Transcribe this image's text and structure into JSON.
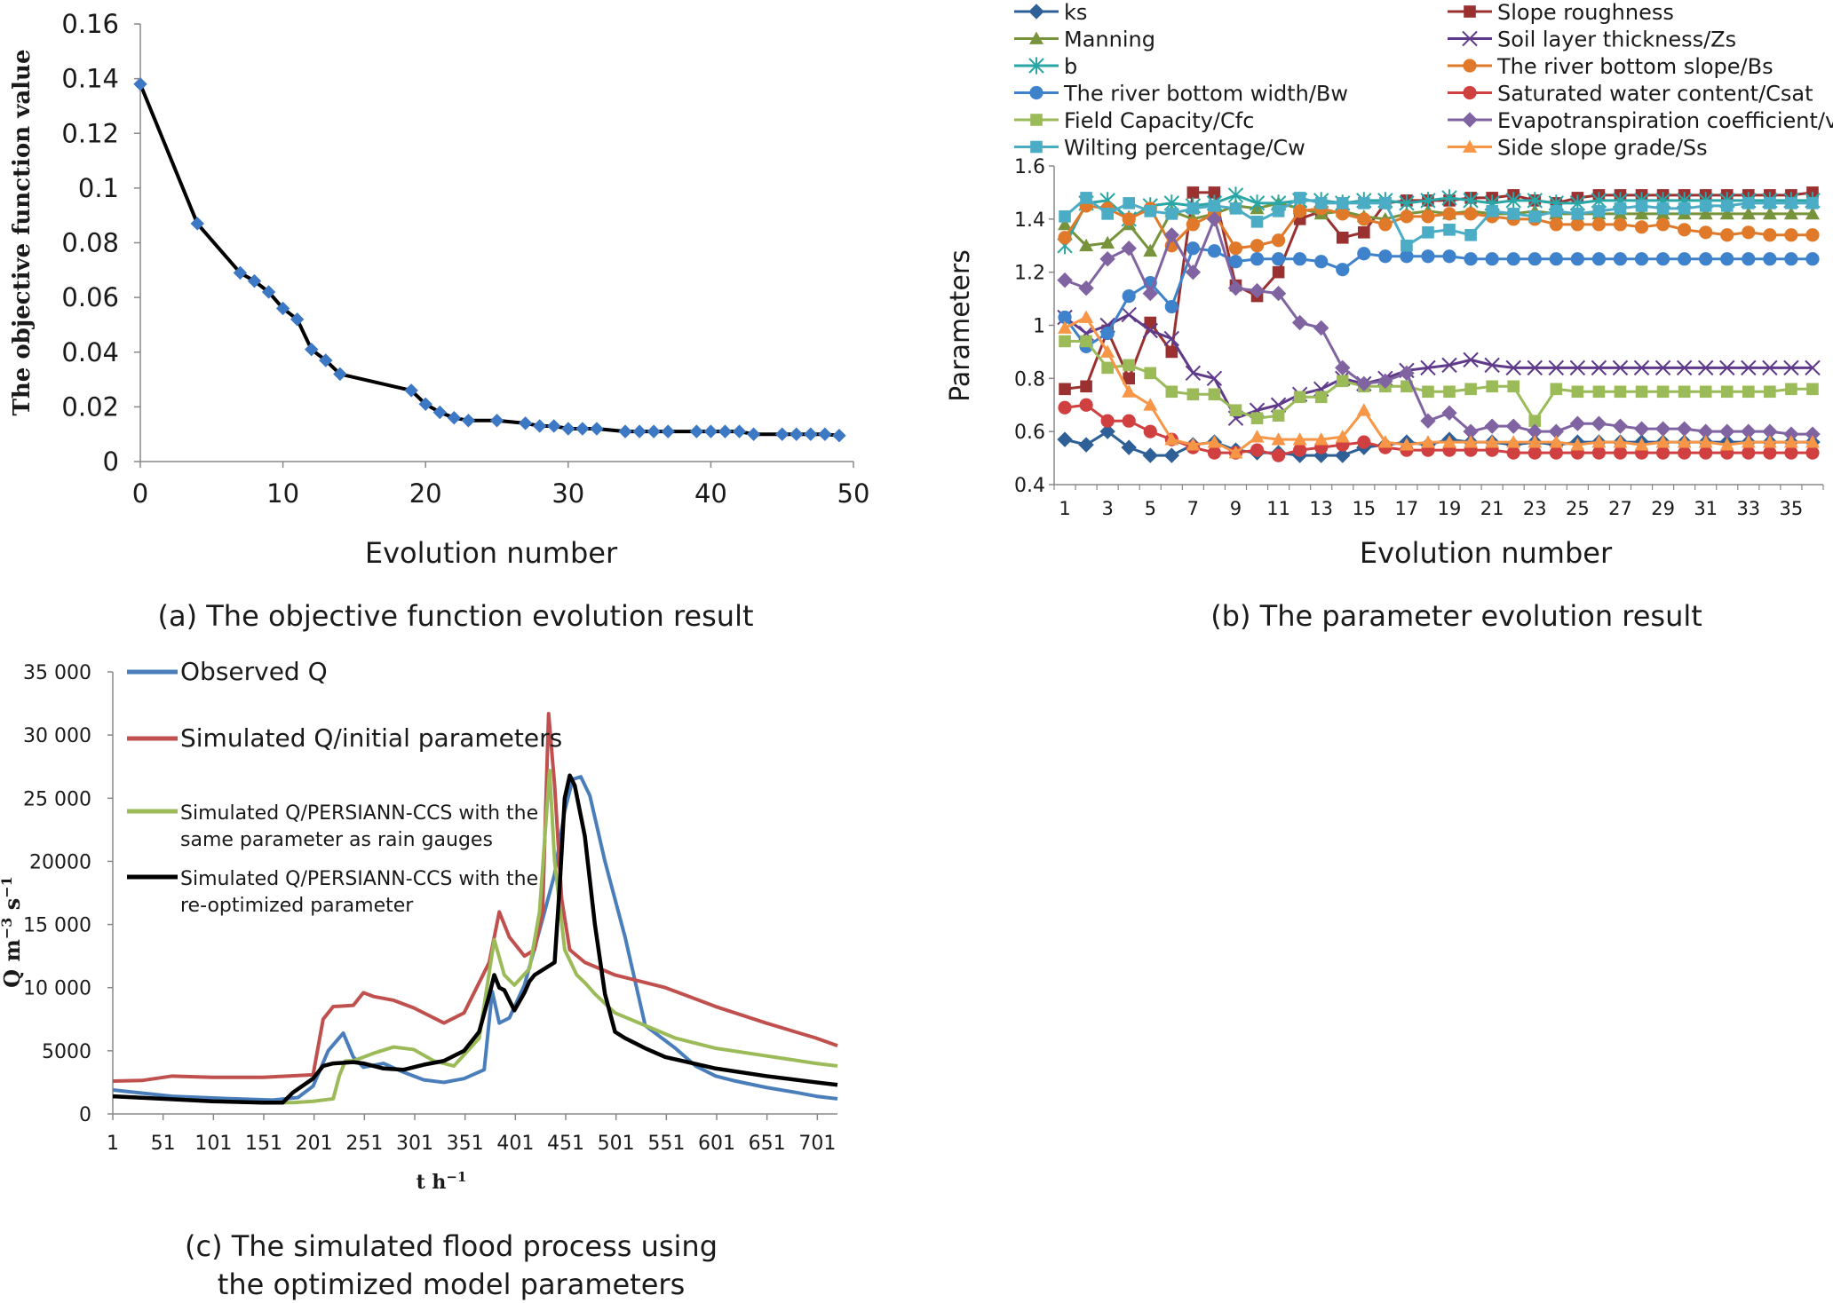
{
  "panels": [
    {
      "type": "line",
      "caption": "(a) The objective function evolution result",
      "xlabel": "Evolution number",
      "ylabel": "The objective function value",
      "xlim": [
        0,
        50
      ],
      "ylim": [
        0,
        0.16
      ],
      "xticks": [
        "0",
        "10",
        "20",
        "30",
        "40",
        "50"
      ],
      "yticks": [
        "0",
        "0.02",
        "0.04",
        "0.06",
        "0.08",
        "0.1",
        "0.12",
        "0.14",
        "0.16"
      ],
      "grid": false,
      "series": [
        {
          "color": "#000000",
          "marker_color": "#3d78c4",
          "x": [
            0,
            4,
            7,
            8,
            9,
            10,
            11,
            12,
            13,
            14,
            19,
            20,
            21,
            22,
            23,
            25,
            27,
            28,
            29,
            30,
            31,
            32,
            34,
            35,
            36,
            37,
            39,
            40,
            41,
            42,
            43,
            45,
            46,
            47,
            48,
            49
          ],
          "y": [
            0.138,
            0.087,
            0.069,
            0.066,
            0.062,
            0.056,
            0.052,
            0.041,
            0.037,
            0.032,
            0.026,
            0.021,
            0.018,
            0.016,
            0.015,
            0.015,
            0.014,
            0.013,
            0.013,
            0.012,
            0.012,
            0.012,
            0.011,
            0.011,
            0.011,
            0.011,
            0.011,
            0.011,
            0.011,
            0.011,
            0.01,
            0.01,
            0.01,
            0.01,
            0.01,
            0.0095
          ]
        }
      ]
    },
    {
      "type": "line",
      "caption": "(b) The parameter evolution result",
      "xlabel": "Evolution number",
      "ylabel": "Parameters",
      "xlim": [
        1,
        36
      ],
      "ylim": [
        0.4,
        1.6
      ],
      "xticks": [
        "1",
        "3",
        "5",
        "7",
        "9",
        "11",
        "13",
        "15",
        "17",
        "19",
        "21",
        "23",
        "25",
        "27",
        "29",
        "31",
        "33",
        "35"
      ],
      "yticks": [
        "0.4",
        "0.6",
        "0.8",
        "1",
        "1.2",
        "1.4",
        "1.6"
      ],
      "grid": false,
      "legend": "top, two columns",
      "series": [
        {
          "name": "ks",
          "color": "#2e5f96",
          "marker": "diamond",
          "values": [
            0.57,
            0.55,
            0.6,
            0.54,
            0.51,
            0.51,
            0.55,
            0.56,
            0.53,
            0.52,
            0.52,
            0.51,
            0.51,
            0.51,
            0.54,
            0.55,
            0.56,
            0.55,
            0.57,
            0.56,
            0.56,
            0.55,
            0.56,
            0.55,
            0.56,
            0.56,
            0.56,
            0.56,
            0.56,
            0.56,
            0.56,
            0.56,
            0.56,
            0.56,
            0.56,
            0.56
          ]
        },
        {
          "name": "Slope roughness",
          "color": "#9b3030",
          "marker": "square",
          "values": [
            0.76,
            0.77,
            0.98,
            0.8,
            1.01,
            0.9,
            1.5,
            1.5,
            1.15,
            1.11,
            1.2,
            1.4,
            1.43,
            1.33,
            1.35,
            1.46,
            1.47,
            1.47,
            1.47,
            1.48,
            1.48,
            1.49,
            1.47,
            1.46,
            1.48,
            1.49,
            1.49,
            1.49,
            1.49,
            1.49,
            1.49,
            1.49,
            1.49,
            1.49,
            1.49,
            1.5
          ]
        },
        {
          "name": "Manning",
          "color": "#77933c",
          "marker": "triangle",
          "values": [
            1.38,
            1.3,
            1.31,
            1.38,
            1.28,
            1.43,
            1.4,
            1.42,
            1.45,
            1.44,
            1.46,
            1.44,
            1.42,
            1.43,
            1.41,
            1.4,
            1.42,
            1.43,
            1.42,
            1.43,
            1.42,
            1.42,
            1.43,
            1.42,
            1.42,
            1.42,
            1.42,
            1.42,
            1.42,
            1.42,
            1.42,
            1.42,
            1.42,
            1.42,
            1.42,
            1.42
          ]
        },
        {
          "name": "Soil layer thickness/Zs",
          "color": "#5f3a8a",
          "marker": "x",
          "values": [
            1.03,
            0.97,
            1.0,
            1.04,
            0.98,
            0.95,
            0.82,
            0.8,
            0.65,
            0.68,
            0.7,
            0.74,
            0.76,
            0.8,
            0.78,
            0.8,
            0.83,
            0.84,
            0.85,
            0.87,
            0.85,
            0.84,
            0.84,
            0.84,
            0.84,
            0.84,
            0.84,
            0.84,
            0.84,
            0.84,
            0.84,
            0.84,
            0.84,
            0.84,
            0.84,
            0.84
          ]
        },
        {
          "name": "b",
          "color": "#2aa6a6",
          "marker": "asterisk",
          "values": [
            1.3,
            1.46,
            1.47,
            1.4,
            1.45,
            1.46,
            1.45,
            1.46,
            1.49,
            1.46,
            1.46,
            1.47,
            1.47,
            1.46,
            1.47,
            1.47,
            1.46,
            1.47,
            1.48,
            1.47,
            1.46,
            1.47,
            1.47,
            1.46,
            1.46,
            1.47,
            1.47,
            1.47,
            1.47,
            1.47,
            1.47,
            1.47,
            1.47,
            1.47,
            1.47,
            1.47
          ]
        },
        {
          "name": "The river bottom slope/Bs",
          "color": "#e07a2a",
          "marker": "circle",
          "values": [
            1.33,
            1.45,
            1.44,
            1.4,
            1.44,
            1.3,
            1.38,
            1.42,
            1.29,
            1.3,
            1.32,
            1.43,
            1.44,
            1.42,
            1.4,
            1.38,
            1.41,
            1.41,
            1.42,
            1.42,
            1.41,
            1.4,
            1.4,
            1.38,
            1.38,
            1.38,
            1.38,
            1.37,
            1.38,
            1.36,
            1.35,
            1.34,
            1.35,
            1.34,
            1.34,
            1.34
          ]
        },
        {
          "name": "The river bottom width/Bw",
          "color": "#3e82cc",
          "marker": "circle",
          "values": [
            1.03,
            0.92,
            0.97,
            1.11,
            1.16,
            1.07,
            1.29,
            1.28,
            1.24,
            1.25,
            1.25,
            1.25,
            1.24,
            1.21,
            1.27,
            1.26,
            1.26,
            1.26,
            1.26,
            1.25,
            1.25,
            1.25,
            1.25,
            1.25,
            1.25,
            1.25,
            1.25,
            1.25,
            1.25,
            1.25,
            1.25,
            1.25,
            1.25,
            1.25,
            1.25,
            1.25
          ]
        },
        {
          "name": "Saturated water content/Csat",
          "color": "#d04040",
          "marker": "circle",
          "values": [
            0.69,
            0.7,
            0.64,
            0.64,
            0.6,
            0.57,
            0.54,
            0.52,
            0.52,
            0.53,
            0.51,
            0.53,
            0.54,
            0.55,
            0.56,
            0.54,
            0.53,
            0.53,
            0.53,
            0.53,
            0.53,
            0.52,
            0.52,
            0.52,
            0.52,
            0.52,
            0.52,
            0.52,
            0.52,
            0.52,
            0.52,
            0.52,
            0.52,
            0.52,
            0.52,
            0.52
          ]
        },
        {
          "name": "Field Capacity/Cfc",
          "color": "#9bbb59",
          "marker": "square",
          "values": [
            0.94,
            0.94,
            0.84,
            0.85,
            0.82,
            0.75,
            0.74,
            0.74,
            0.68,
            0.65,
            0.66,
            0.73,
            0.73,
            0.79,
            0.77,
            0.77,
            0.77,
            0.75,
            0.75,
            0.76,
            0.77,
            0.77,
            0.64,
            0.76,
            0.75,
            0.75,
            0.75,
            0.75,
            0.75,
            0.75,
            0.75,
            0.75,
            0.75,
            0.75,
            0.76,
            0.76
          ]
        },
        {
          "name": "Evapotranspiration coefficient/v",
          "color": "#8064a2",
          "marker": "diamond",
          "values": [
            1.17,
            1.14,
            1.25,
            1.29,
            1.12,
            1.34,
            1.2,
            1.4,
            1.14,
            1.13,
            1.12,
            1.01,
            0.99,
            0.84,
            0.78,
            0.79,
            0.82,
            0.64,
            0.67,
            0.6,
            0.62,
            0.62,
            0.6,
            0.6,
            0.63,
            0.63,
            0.62,
            0.61,
            0.61,
            0.61,
            0.6,
            0.6,
            0.6,
            0.6,
            0.59,
            0.59
          ]
        },
        {
          "name": "Wilting percentage/Cw",
          "color": "#4bacc6",
          "marker": "square",
          "values": [
            1.41,
            1.48,
            1.42,
            1.46,
            1.43,
            1.42,
            1.44,
            1.45,
            1.44,
            1.39,
            1.43,
            1.48,
            1.46,
            1.46,
            1.46,
            1.46,
            1.3,
            1.35,
            1.36,
            1.34,
            1.43,
            1.42,
            1.41,
            1.43,
            1.42,
            1.43,
            1.44,
            1.45,
            1.44,
            1.44,
            1.45,
            1.45,
            1.46,
            1.46,
            1.46,
            1.46
          ]
        },
        {
          "name": "Side slope grade/Ss",
          "color": "#f79646",
          "marker": "triangle",
          "values": [
            0.99,
            1.03,
            0.9,
            0.75,
            0.7,
            0.57,
            0.55,
            0.56,
            0.52,
            0.58,
            0.57,
            0.57,
            0.57,
            0.58,
            0.68,
            0.56,
            0.55,
            0.56,
            0.56,
            0.56,
            0.56,
            0.56,
            0.56,
            0.56,
            0.55,
            0.56,
            0.56,
            0.55,
            0.56,
            0.56,
            0.56,
            0.55,
            0.56,
            0.56,
            0.56,
            0.56
          ]
        }
      ]
    },
    {
      "type": "line",
      "caption_lines": [
        "(c) The simulated flood process using",
        "the optimized model parameters"
      ],
      "xlabel": "t h",
      "xlabel_sup": "−1",
      "ylabel": "Q m",
      "ylabel_sup1": "−3",
      "ylabel_mid": " s",
      "ylabel_sup2": "−1",
      "xlim": [
        1,
        721
      ],
      "ylim": [
        0,
        35000
      ],
      "xticks": [
        "1",
        "51",
        "101",
        "151",
        "201",
        "251",
        "301",
        "351",
        "401",
        "451",
        "501",
        "551",
        "601",
        "651",
        "701"
      ],
      "yticks": [
        "0",
        "5000",
        "10 000",
        "15 000",
        "20000",
        "25 000",
        "30 000",
        "35 000"
      ],
      "grid": false,
      "legend": "top-left",
      "series": [
        {
          "name": "Observed Q",
          "color": "#4a7ebb",
          "width": 4,
          "x": [
            1,
            60,
            120,
            160,
            185,
            200,
            215,
            230,
            240,
            250,
            270,
            290,
            310,
            330,
            350,
            370,
            378,
            385,
            395,
            410,
            430,
            440,
            450,
            458,
            466,
            475,
            490,
            510,
            530,
            560,
            580,
            600,
            620,
            650,
            680,
            700,
            721
          ],
          "y": [
            1900,
            1400,
            1200,
            1100,
            1300,
            2200,
            5000,
            6400,
            4500,
            3700,
            4000,
            3300,
            2700,
            2500,
            2800,
            3500,
            9700,
            7200,
            7600,
            10200,
            16000,
            19000,
            24000,
            26500,
            26700,
            25200,
            20000,
            14000,
            7000,
            5200,
            3800,
            3000,
            2600,
            2100,
            1700,
            1400,
            1200
          ]
        },
        {
          "name": "Simulated Q/initial parameters",
          "color": "#c0504d",
          "width": 4,
          "x": [
            1,
            30,
            60,
            100,
            150,
            200,
            210,
            220,
            240,
            250,
            260,
            280,
            300,
            330,
            350,
            375,
            385,
            395,
            410,
            420,
            428,
            434,
            440,
            447,
            455,
            470,
            500,
            550,
            600,
            650,
            700,
            721
          ],
          "y": [
            2600,
            2650,
            3000,
            2900,
            2900,
            3100,
            7500,
            8500,
            8600,
            9600,
            9300,
            9000,
            8400,
            7200,
            8000,
            12000,
            16000,
            14000,
            12500,
            13000,
            16000,
            31700,
            26000,
            17000,
            13000,
            12000,
            11000,
            10000,
            8500,
            7200,
            6000,
            5400
          ]
        },
        {
          "name_lines": [
            "Simulated Q/PERSIANN-CCS with the",
            "same parameter as rain gauges"
          ],
          "color": "#9bbb59",
          "width": 4,
          "x": [
            1,
            50,
            100,
            150,
            180,
            200,
            220,
            226,
            232,
            240,
            260,
            280,
            300,
            320,
            340,
            365,
            380,
            390,
            400,
            415,
            425,
            435,
            440,
            450,
            462,
            470,
            480,
            500,
            530,
            560,
            600,
            650,
            700,
            721
          ],
          "y": [
            1400,
            1200,
            1000,
            900,
            900,
            1000,
            1200,
            3000,
            4200,
            4200,
            4800,
            5300,
            5100,
            4200,
            3800,
            6000,
            13800,
            11000,
            10200,
            11500,
            16000,
            27200,
            20000,
            13000,
            11000,
            10400,
            9500,
            8000,
            7000,
            6000,
            5200,
            4600,
            4000,
            3800
          ]
        },
        {
          "name_lines": [
            "Simulated Q/PERSIANN-CCS with the",
            "re-optimized parameter"
          ],
          "color": "#000000",
          "width": 4.5,
          "x": [
            1,
            50,
            100,
            150,
            170,
            180,
            200,
            210,
            220,
            240,
            250,
            270,
            290,
            310,
            330,
            350,
            365,
            375,
            380,
            385,
            390,
            395,
            400,
            410,
            415,
            420,
            430,
            440,
            445,
            450,
            455,
            460,
            470,
            480,
            490,
            500,
            510,
            520,
            530,
            550,
            600,
            650,
            700,
            721
          ],
          "y": [
            1400,
            1200,
            1000,
            900,
            900,
            1700,
            2800,
            3800,
            4000,
            4100,
            4000,
            3600,
            3500,
            3900,
            4200,
            5000,
            6500,
            9400,
            11000,
            10000,
            9800,
            9000,
            8200,
            9600,
            10500,
            11000,
            11500,
            12000,
            18000,
            25000,
            26800,
            26000,
            22000,
            15000,
            9500,
            6500,
            6000,
            5600,
            5200,
            4500,
            3600,
            3000,
            2500,
            2300
          ]
        }
      ]
    }
  ]
}
